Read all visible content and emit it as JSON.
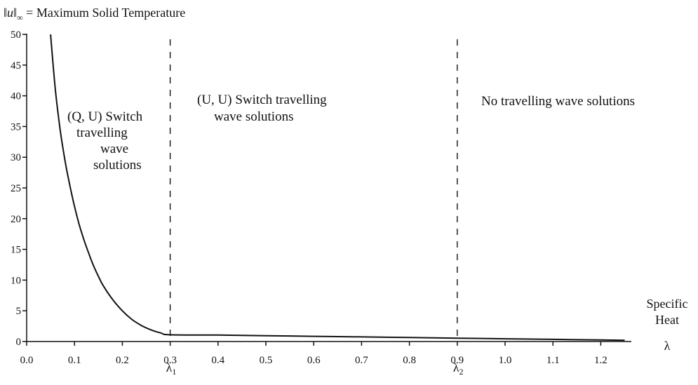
{
  "chart_data": {
    "type": "line",
    "title": "‖u‖∞ = Maximum Solid Temperature",
    "title_norm": "‖u‖",
    "title_sub": "∞",
    "title_rest": " = Maximum Solid Temperature",
    "xlabel_line1": "Specific",
    "xlabel_line2": "Heat",
    "xlabel_symbol": "λ",
    "xlim": [
      0,
      1.25
    ],
    "ylim": [
      0,
      50
    ],
    "xticks": [
      0.0,
      0.1,
      0.2,
      0.3,
      0.4,
      0.5,
      0.6,
      0.7,
      0.8,
      0.9,
      1.0,
      1.1,
      1.2
    ],
    "xtick_labels": [
      "0.0",
      "0.1",
      "0.2",
      "0.3",
      "0.4",
      "0.5",
      "0.6",
      "0.7",
      "0.8",
      "0.9",
      "1.0",
      "1.1",
      "1.2"
    ],
    "yticks": [
      0,
      5,
      10,
      15,
      20,
      25,
      30,
      35,
      40,
      45,
      50
    ],
    "ytick_labels": [
      "0",
      "5",
      "10",
      "15",
      "20",
      "25",
      "30",
      "35",
      "40",
      "45",
      "50"
    ],
    "grid": false,
    "series": [
      {
        "x": [
          0.05,
          0.06,
          0.07,
          0.08,
          0.09,
          0.1,
          0.11,
          0.12,
          0.13,
          0.14,
          0.15,
          0.16,
          0.18,
          0.2,
          0.22,
          0.24,
          0.26,
          0.28,
          0.3,
          0.4,
          0.5,
          0.6,
          0.7,
          0.8,
          0.9,
          1.0,
          1.1,
          1.2,
          1.25
        ],
        "y": [
          50,
          41,
          34.5,
          29.5,
          25.5,
          22,
          19,
          16.5,
          14.3,
          12.3,
          10.6,
          9.1,
          6.8,
          5.0,
          3.6,
          2.6,
          1.9,
          1.4,
          1.1,
          1.05,
          0.95,
          0.85,
          0.75,
          0.65,
          0.55,
          0.45,
          0.35,
          0.25,
          0.2
        ]
      }
    ],
    "vlines": [
      {
        "x": 0.3,
        "label": "λ",
        "sub": "1"
      },
      {
        "x": 0.9,
        "label": "λ",
        "sub": "2"
      }
    ],
    "regions": [
      {
        "lines": [
          "(Q, U) Switch",
          "travelling",
          "wave",
          "solutions"
        ]
      },
      {
        "lines": [
          "(U, U) Switch travelling",
          "wave solutions"
        ]
      },
      {
        "lines": [
          "No travelling wave solutions"
        ]
      }
    ]
  }
}
